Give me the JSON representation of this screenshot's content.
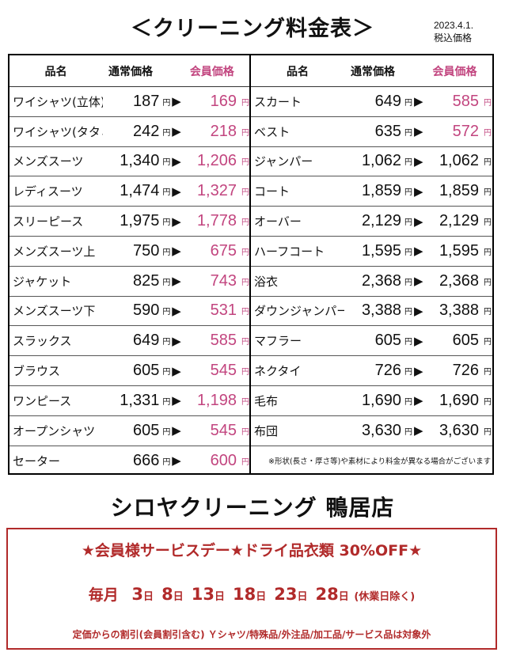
{
  "header": {
    "title": "＜クリーニング料金表＞",
    "date": "2023.4.1.",
    "tax_note": "税込価格"
  },
  "table": {
    "headers": {
      "name": "品名",
      "regular": "通常価格",
      "member": "会員価格"
    },
    "yen": "円",
    "arrow": "▶",
    "left_rows": [
      {
        "name": "ワイシャツ(立体)",
        "regular": "187",
        "member": "169"
      },
      {
        "name": "ワイシャツ(タタミ)",
        "regular": "242",
        "member": "218"
      },
      {
        "name": "メンズスーツ",
        "regular": "1,340",
        "member": "1,206"
      },
      {
        "name": "レディスーツ",
        "regular": "1,474",
        "member": "1,327"
      },
      {
        "name": "スリーピース",
        "regular": "1,975",
        "member": "1,778"
      },
      {
        "name": "メンズスーツ上",
        "regular": "750",
        "member": "675"
      },
      {
        "name": "ジャケット",
        "regular": "825",
        "member": "743"
      },
      {
        "name": "メンズスーツ下",
        "regular": "590",
        "member": "531"
      },
      {
        "name": "スラックス",
        "regular": "649",
        "member": "585"
      },
      {
        "name": "ブラウス",
        "regular": "605",
        "member": "545"
      },
      {
        "name": "ワンピース",
        "regular": "1,331",
        "member": "1,198"
      },
      {
        "name": "オープンシャツ",
        "regular": "605",
        "member": "545"
      },
      {
        "name": "セーター",
        "regular": "666",
        "member": "600"
      }
    ],
    "right_rows": [
      {
        "name": "スカート",
        "regular": "649",
        "member": "585",
        "pink": true
      },
      {
        "name": "ベスト",
        "regular": "635",
        "member": "572",
        "pink": true
      },
      {
        "name": "ジャンパー",
        "regular": "1,062",
        "member": "1,062"
      },
      {
        "name": "コート",
        "regular": "1,859",
        "member": "1,859"
      },
      {
        "name": "オーバー",
        "regular": "2,129",
        "member": "2,129"
      },
      {
        "name": "ハーフコート",
        "regular": "1,595",
        "member": "1,595"
      },
      {
        "name": "浴衣",
        "regular": "2,368",
        "member": "2,368"
      },
      {
        "name": "ダウンジャンパー",
        "regular": "3,388",
        "member": "3,388"
      },
      {
        "name": "マフラー",
        "regular": "605",
        "member": "605"
      },
      {
        "name": "ネクタイ",
        "regular": "726",
        "member": "726"
      },
      {
        "name": "毛布",
        "regular": "1,690",
        "member": "1,690"
      },
      {
        "name": "布団",
        "regular": "3,630",
        "member": "3,630"
      }
    ],
    "note": "※形状(長さ・厚さ等)や素材により料金が異なる場合がございます"
  },
  "shop_name": "シロヤクリーニング 鴨居店",
  "promo": {
    "headline": "★会員様サービスデー★ドライ品衣類 30%OFF★",
    "monthly": "毎月",
    "days": [
      "3",
      "8",
      "13",
      "18",
      "23",
      "28"
    ],
    "day_unit": "日",
    "closed_note": "(休業日除く)",
    "conditions": "定価からの割引(会員割引含む) Ｙシャツ/特殊品/外注品/加工品/サービス品は対象外"
  },
  "colors": {
    "member_pink": "#c2457f",
    "promo_red": "#b12a2a"
  }
}
